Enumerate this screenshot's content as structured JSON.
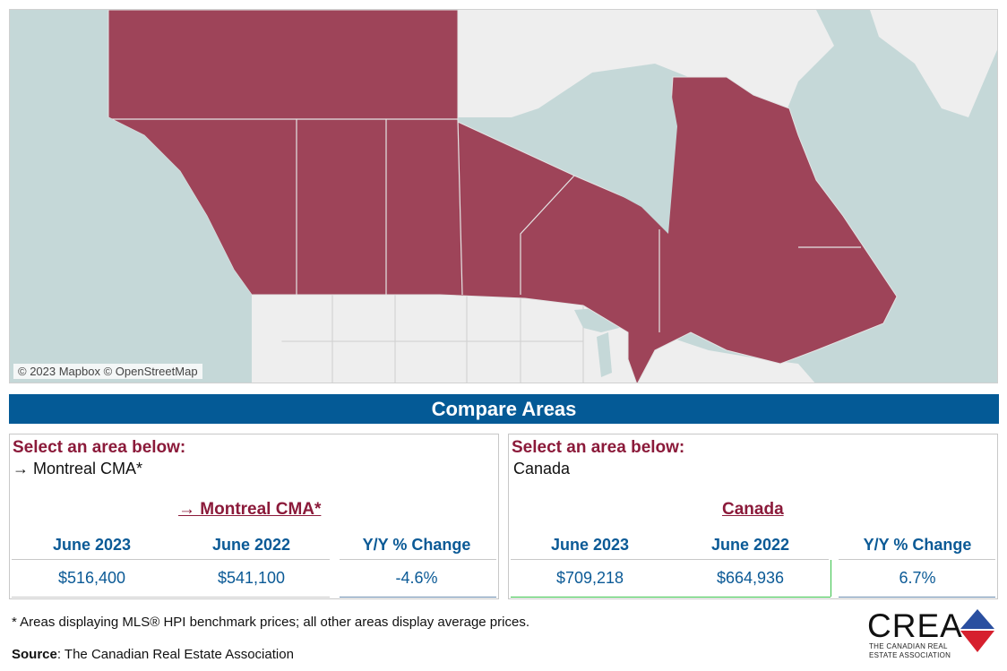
{
  "map": {
    "attribution": "© 2023 Mapbox © OpenStreetMap",
    "colors": {
      "water": "#c5d8d8",
      "land": "#f1f1f1",
      "region": "#9e4459",
      "border": "#d8d8d8"
    }
  },
  "banner": {
    "title": "Compare Areas"
  },
  "left": {
    "select_label": "Select an area below:",
    "selected_area": "→ Montreal CMA*",
    "area_title": "→ Montreal CMA*",
    "columns": [
      "June 2023",
      "June 2022",
      "Y/Y % Change"
    ],
    "values": [
      "$516,400",
      "$541,100",
      "-4.6%"
    ]
  },
  "right": {
    "select_label": "Select an area below:",
    "selected_area": "Canada",
    "area_title": "Canada",
    "columns": [
      "June 2023",
      "June 2022",
      "Y/Y % Change"
    ],
    "values": [
      "$709,218",
      "$664,936",
      "6.7%"
    ]
  },
  "footer": {
    "footnote": "* Areas displaying MLS® HPI benchmark prices; all other areas display average prices.",
    "source_label": "Source",
    "source_text": ": The Canadian Real Estate Association"
  },
  "logo": {
    "word": "CREA",
    "sub_line1": "THE CANADIAN REAL",
    "sub_line2": "ESTATE ASSOCIATION",
    "colors": {
      "red": "#d6202e",
      "blue": "#2a4fa0"
    }
  }
}
